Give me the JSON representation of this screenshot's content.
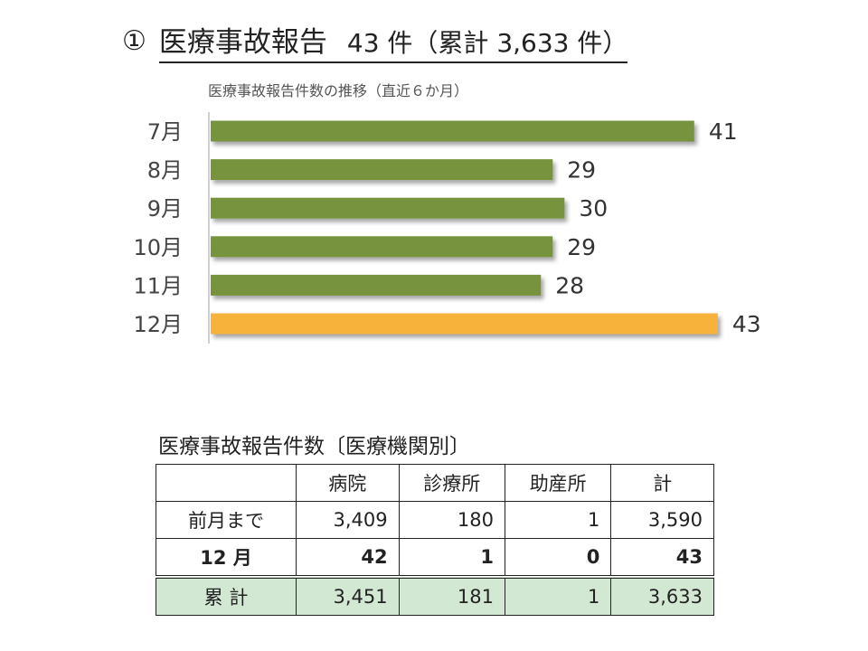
{
  "heading": {
    "number": "①",
    "title": "医療事故報告",
    "count_text": "43 件（累計 3,633 件）"
  },
  "chart_data": {
    "type": "bar",
    "orientation": "horizontal",
    "title": "医療事故報告件数の推移（直近６か月）",
    "categories": [
      "7月",
      "8月",
      "9月",
      "10月",
      "11月",
      "12月"
    ],
    "values": [
      41,
      29,
      30,
      29,
      28,
      43
    ],
    "colors": [
      "#77933c",
      "#77933c",
      "#77933c",
      "#77933c",
      "#77933c",
      "#f6b23a"
    ],
    "xlim": [
      0,
      45
    ],
    "data_labels": true,
    "grid": false
  },
  "table": {
    "title": "医療事故報告件数〔医療機関別〕",
    "headers": [
      "",
      "病院",
      "診療所",
      "助産所",
      "計"
    ],
    "rows": [
      {
        "label": "前月まで",
        "values": [
          "3,409",
          "180",
          "1",
          "3,590"
        ]
      },
      {
        "label": "12 月",
        "values": [
          "42",
          "1",
          "0",
          "43"
        ]
      },
      {
        "label": "累 計",
        "values": [
          "3,451",
          "181",
          "1",
          "3,633"
        ]
      }
    ]
  }
}
